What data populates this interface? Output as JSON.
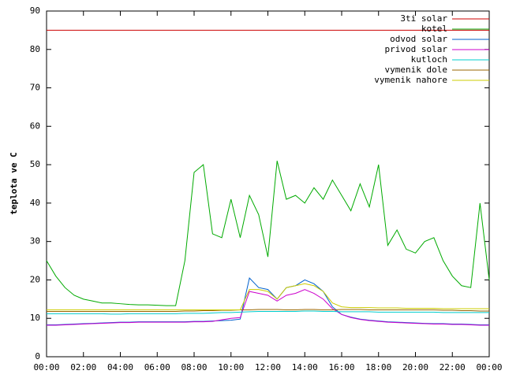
{
  "chart_data": {
    "type": "line",
    "y_label": "teplota ve C",
    "xlim": [
      0,
      24
    ],
    "ylim": [
      0,
      90
    ],
    "yticks": [
      0,
      10,
      20,
      30,
      40,
      50,
      60,
      70,
      80,
      90
    ],
    "xticks": [
      {
        "value": 0,
        "label": "00:00"
      },
      {
        "value": 2,
        "label": "02:00"
      },
      {
        "value": 4,
        "label": "04:00"
      },
      {
        "value": 6,
        "label": "06:00"
      },
      {
        "value": 8,
        "label": "08:00"
      },
      {
        "value": 10,
        "label": "10:00"
      },
      {
        "value": 12,
        "label": "12:00"
      },
      {
        "value": 14,
        "label": "14:00"
      },
      {
        "value": 16,
        "label": "16:00"
      },
      {
        "value": 18,
        "label": "18:00"
      },
      {
        "value": 20,
        "label": "20:00"
      },
      {
        "value": 22,
        "label": "22:00"
      },
      {
        "value": 24,
        "label": "00:00"
      }
    ],
    "legend": "top-right",
    "x": [
      0,
      0.5,
      1,
      1.5,
      2,
      2.5,
      3,
      3.5,
      4,
      4.5,
      5,
      5.5,
      6,
      6.5,
      7,
      7.5,
      8,
      8.5,
      9,
      9.5,
      10,
      10.5,
      11,
      11.5,
      12,
      12.5,
      13,
      13.5,
      14,
      14.5,
      15,
      15.5,
      16,
      16.5,
      17,
      17.5,
      18,
      18.5,
      19,
      19.5,
      20,
      20.5,
      21,
      21.5,
      22,
      22.5,
      23,
      23.5,
      24
    ],
    "series": [
      {
        "name": "3ti solar",
        "color": "#cc0000",
        "values": [
          85,
          85,
          85,
          85,
          85,
          85,
          85,
          85,
          85,
          85,
          85,
          85,
          85,
          85,
          85,
          85,
          85,
          85,
          85,
          85,
          85,
          85,
          85,
          85,
          85,
          85,
          85,
          85,
          85,
          85,
          85,
          85,
          85,
          85,
          85,
          85,
          85,
          85,
          85,
          85,
          85,
          85,
          85,
          85,
          85,
          85,
          85,
          85,
          85
        ]
      },
      {
        "name": "kotel",
        "color": "#00aa00",
        "values": [
          25,
          21,
          18,
          16,
          15,
          14.5,
          14,
          14,
          13.8,
          13.6,
          13.5,
          13.5,
          13.4,
          13.3,
          13.3,
          25,
          48,
          50,
          32,
          31,
          41,
          31,
          42,
          37,
          26,
          51,
          41,
          42,
          40,
          44,
          41,
          46,
          42,
          38,
          45,
          39,
          50,
          29,
          33,
          28,
          27,
          30,
          31,
          25,
          21,
          18.5,
          18,
          40,
          20
        ]
      },
      {
        "name": "odvod solar",
        "color": "#0060cc",
        "values": [
          8.3,
          8.3,
          8.4,
          8.5,
          8.6,
          8.7,
          8.8,
          8.9,
          9,
          9,
          9.1,
          9.1,
          9.1,
          9.1,
          9.1,
          9.1,
          9.2,
          9.2,
          9.3,
          9.4,
          9.5,
          9.8,
          20.5,
          18,
          17.5,
          15,
          18,
          18.5,
          20,
          19,
          17,
          13,
          11,
          10.3,
          9.8,
          9.5,
          9.3,
          9.1,
          9,
          8.9,
          8.8,
          8.7,
          8.6,
          8.6,
          8.5,
          8.5,
          8.4,
          8.3,
          8.3
        ]
      },
      {
        "name": "privod solar",
        "color": "#cc00cc",
        "values": [
          8.2,
          8.2,
          8.3,
          8.4,
          8.5,
          8.6,
          8.7,
          8.8,
          8.9,
          8.9,
          9,
          9,
          9,
          9,
          9,
          9,
          9.1,
          9.1,
          9.2,
          9.6,
          10,
          10.2,
          17,
          16.5,
          16,
          14.5,
          16,
          16.5,
          17.5,
          16.5,
          15,
          12.5,
          11,
          10.2,
          9.7,
          9.4,
          9.2,
          9,
          8.9,
          8.8,
          8.7,
          8.6,
          8.5,
          8.5,
          8.4,
          8.4,
          8.3,
          8.2,
          8.2
        ]
      },
      {
        "name": "kutloch",
        "color": "#00cccc",
        "values": [
          11.2,
          11.2,
          11.2,
          11.2,
          11.2,
          11.2,
          11.2,
          11.1,
          11.1,
          11.2,
          11.2,
          11.2,
          11.2,
          11.2,
          11.2,
          11.3,
          11.3,
          11.3,
          11.4,
          11.5,
          11.5,
          11.6,
          11.7,
          11.8,
          11.8,
          11.8,
          11.8,
          11.8,
          11.9,
          11.9,
          11.8,
          11.8,
          11.7,
          11.7,
          11.7,
          11.7,
          11.6,
          11.6,
          11.6,
          11.6,
          11.6,
          11.6,
          11.6,
          11.5,
          11.5,
          11.5,
          11.5,
          11.5,
          11.5
        ]
      },
      {
        "name": "vymenik dole",
        "color": "#996600",
        "values": [
          11.8,
          11.8,
          11.8,
          11.8,
          11.8,
          11.8,
          11.8,
          11.8,
          11.8,
          11.8,
          11.8,
          11.8,
          11.8,
          11.8,
          11.8,
          11.9,
          11.9,
          12,
          12,
          12.1,
          12.1,
          12.2,
          12.2,
          12.3,
          12.3,
          12.3,
          12.2,
          12.2,
          12.3,
          12.3,
          12.2,
          12.2,
          12.3,
          12.3,
          12.3,
          12.2,
          12.2,
          12.2,
          12.2,
          12.2,
          12.2,
          12.2,
          12.2,
          12.1,
          12.1,
          12,
          12,
          11.9,
          11.9
        ]
      },
      {
        "name": "vymenik nahore",
        "color": "#cccc00",
        "values": [
          12.2,
          12.2,
          12.2,
          12.2,
          12.2,
          12.2,
          12.2,
          12.2,
          12.2,
          12.2,
          12.2,
          12.2,
          12.2,
          12.2,
          12.2,
          12.2,
          12.2,
          12.2,
          12.2,
          12.2,
          12.2,
          12.2,
          17.5,
          17.5,
          17,
          15,
          18,
          18.5,
          19,
          18.5,
          17,
          14,
          13,
          12.8,
          12.8,
          12.8,
          12.7,
          12.7,
          12.7,
          12.6,
          12.6,
          12.6,
          12.6,
          12.5,
          12.5,
          12.5,
          12.5,
          12.5,
          12.5
        ]
      }
    ]
  }
}
